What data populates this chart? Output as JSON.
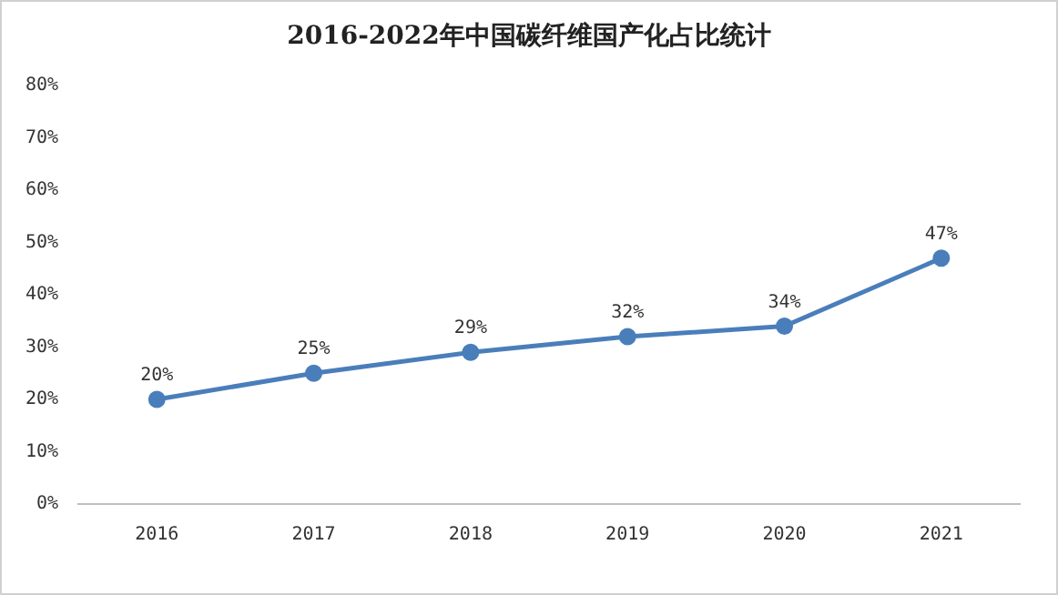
{
  "chart_data": {
    "type": "line",
    "title": "2016-2022年中国碳纤维国产化占比统计",
    "categories": [
      "2016",
      "2017",
      "2018",
      "2019",
      "2020",
      "2021"
    ],
    "series": [
      {
        "color": "#4a7ebb",
        "values": [
          20,
          25,
          29,
          32,
          34,
          47
        ],
        "value_labels": [
          "20%",
          "25%",
          "29%",
          "32%",
          "34%",
          "47%"
        ]
      }
    ],
    "ylim": [
      0,
      80
    ],
    "yticks": [
      {
        "value": 0,
        "label": "0%"
      },
      {
        "value": 10,
        "label": "10%"
      },
      {
        "value": 20,
        "label": "20%"
      },
      {
        "value": 30,
        "label": "30%"
      },
      {
        "value": 40,
        "label": "40%"
      },
      {
        "value": 50,
        "label": "50%"
      },
      {
        "value": 60,
        "label": "60%"
      },
      {
        "value": 70,
        "label": "70%"
      },
      {
        "value": 80,
        "label": "80%"
      }
    ],
    "grid": false,
    "legend": false,
    "marker": "circle",
    "line_style": "solid"
  }
}
